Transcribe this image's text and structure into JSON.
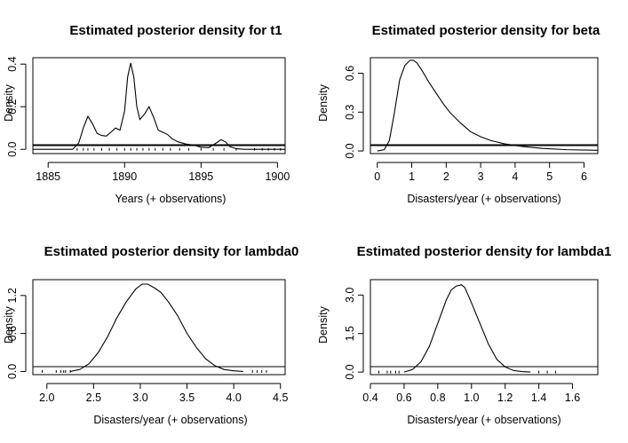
{
  "chart_data": [
    {
      "type": "line",
      "title": "Estimated posterior density for t1",
      "xlabel": "Years (+ observations)",
      "ylabel": "Density",
      "xlim": [
        1884,
        1900.5
      ],
      "ylim": [
        -0.02,
        0.43
      ],
      "x_ticks": [
        1885,
        1890,
        1895,
        1900
      ],
      "x_tick_labels": [
        "1885",
        "1890",
        "1895",
        "1900"
      ],
      "y_ticks": [
        0.0,
        0.2,
        0.4
      ],
      "y_tick_labels": [
        "0.0",
        "0.2",
        "0.4"
      ],
      "series": [
        {
          "x": [
            1884.0,
            1886.6,
            1887.0,
            1887.3,
            1887.6,
            1887.9,
            1888.2,
            1888.5,
            1888.8,
            1889.1,
            1889.4,
            1889.7,
            1890.0,
            1890.2,
            1890.4,
            1890.6,
            1890.8,
            1891.0,
            1891.3,
            1891.6,
            1891.9,
            1892.2,
            1892.5,
            1892.8,
            1893.1,
            1893.5,
            1894.0,
            1894.5,
            1895.0,
            1895.5,
            1896.0,
            1896.3,
            1896.6,
            1896.9,
            1897.3,
            1897.8,
            1900.5
          ],
          "y": [
            0.0,
            0.0,
            0.03,
            0.1,
            0.155,
            0.12,
            0.075,
            0.065,
            0.062,
            0.08,
            0.1,
            0.09,
            0.18,
            0.34,
            0.405,
            0.34,
            0.2,
            0.14,
            0.165,
            0.2,
            0.15,
            0.09,
            0.08,
            0.07,
            0.05,
            0.035,
            0.025,
            0.02,
            0.01,
            0.008,
            0.03,
            0.045,
            0.035,
            0.012,
            0.003,
            0.0,
            0.0
          ]
        }
      ],
      "observation_rug": [
        1886.9,
        1887.3,
        1887.6,
        1888.0,
        1888.5,
        1889.0,
        1889.5,
        1890.0,
        1890.4,
        1890.8,
        1891.2,
        1891.6,
        1892.0,
        1892.5,
        1893.0,
        1893.6,
        1894.2,
        1895.0,
        1895.8,
        1896.5,
        1897.3,
        1898.5,
        1899.0,
        1899.4,
        1899.8,
        1900.2
      ]
    },
    {
      "type": "line",
      "title": "Estimated posterior density for beta",
      "xlabel": "Disasters/year (+ observations)",
      "ylabel": "Density",
      "xlim": [
        -0.2,
        6.4
      ],
      "ylim": [
        -0.02,
        0.72
      ],
      "x_ticks": [
        0,
        1,
        2,
        3,
        4,
        5,
        6
      ],
      "x_tick_labels": [
        "0",
        "1",
        "2",
        "3",
        "4",
        "5",
        "6"
      ],
      "y_ticks": [
        0.0,
        0.3,
        0.6
      ],
      "y_tick_labels": [
        "0.0",
        "0.3",
        "0.6"
      ],
      "series": [
        {
          "x": [
            0.0,
            0.2,
            0.35,
            0.5,
            0.65,
            0.8,
            0.95,
            1.05,
            1.15,
            1.3,
            1.5,
            1.7,
            1.9,
            2.1,
            2.4,
            2.7,
            3.0,
            3.3,
            3.7,
            4.2,
            4.8,
            5.5,
            6.4
          ],
          "y": [
            0.0,
            0.01,
            0.08,
            0.3,
            0.55,
            0.66,
            0.7,
            0.7,
            0.68,
            0.62,
            0.53,
            0.45,
            0.37,
            0.3,
            0.22,
            0.15,
            0.11,
            0.08,
            0.055,
            0.035,
            0.02,
            0.01,
            0.005
          ]
        }
      ],
      "observation_rug": []
    },
    {
      "type": "line",
      "title": "Estimated posterior density for lambda0",
      "xlabel": "Disasters/year (+ observations)",
      "ylabel": "Density",
      "xlim": [
        1.85,
        4.55
      ],
      "ylim": [
        -0.05,
        1.45
      ],
      "x_ticks": [
        2.0,
        2.5,
        3.0,
        3.5,
        4.0,
        4.5
      ],
      "x_tick_labels": [
        "2.0",
        "2.5",
        "3.0",
        "3.5",
        "4.0",
        "4.5"
      ],
      "y_ticks": [
        0.0,
        0.6,
        1.2
      ],
      "y_tick_labels": [
        "0.0",
        "0.6",
        "1.2"
      ],
      "series": [
        {
          "x": [
            2.25,
            2.35,
            2.45,
            2.55,
            2.65,
            2.75,
            2.85,
            2.95,
            3.02,
            3.08,
            3.15,
            3.22,
            3.3,
            3.4,
            3.5,
            3.6,
            3.7,
            3.8,
            3.9,
            4.0,
            4.1
          ],
          "y": [
            0.0,
            0.03,
            0.12,
            0.3,
            0.55,
            0.85,
            1.1,
            1.3,
            1.38,
            1.38,
            1.32,
            1.25,
            1.1,
            0.88,
            0.6,
            0.38,
            0.2,
            0.09,
            0.03,
            0.01,
            0.0
          ]
        }
      ],
      "observation_rug": [
        1.95,
        2.1,
        2.15,
        2.18,
        2.2,
        2.25,
        4.2,
        4.25,
        4.3,
        4.35
      ]
    },
    {
      "type": "line",
      "title": "Estimated posterior density for lambda1",
      "xlabel": "Disasters/year (+ observations)",
      "ylabel": "Density",
      "xlim": [
        0.4,
        1.75
      ],
      "ylim": [
        -0.1,
        3.6
      ],
      "x_ticks": [
        0.4,
        0.6,
        0.8,
        1.0,
        1.2,
        1.4,
        1.6
      ],
      "x_tick_labels": [
        "0.4",
        "0.6",
        "0.8",
        "1.0",
        "1.2",
        "1.4",
        "1.6"
      ],
      "y_ticks": [
        0.0,
        1.5,
        3.0
      ],
      "y_tick_labels": [
        "0.0",
        "1.5",
        "3.0"
      ],
      "series": [
        {
          "x": [
            0.6,
            0.65,
            0.7,
            0.75,
            0.8,
            0.85,
            0.88,
            0.91,
            0.94,
            0.96,
            1.0,
            1.05,
            1.1,
            1.15,
            1.2,
            1.25,
            1.3,
            1.35
          ],
          "y": [
            0.0,
            0.1,
            0.4,
            1.0,
            1.9,
            2.8,
            3.2,
            3.35,
            3.4,
            3.3,
            2.7,
            1.9,
            1.1,
            0.5,
            0.2,
            0.06,
            0.02,
            0.0
          ]
        }
      ],
      "observation_rug": [
        0.45,
        0.5,
        0.52,
        0.55,
        0.57,
        1.4,
        1.45,
        1.5
      ]
    }
  ]
}
